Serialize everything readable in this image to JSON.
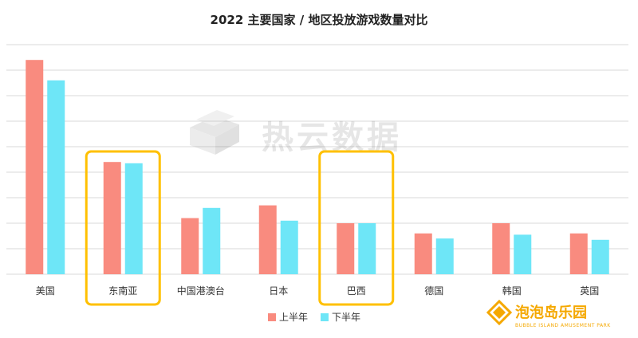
{
  "chart_data": {
    "type": "bar",
    "title": "2022 主要国家 / 地区投放游戏数量对比",
    "categories": [
      "美国",
      "东南亚",
      "中国港澳台",
      "日本",
      "巴西",
      "德国",
      "韩国",
      "英国"
    ],
    "series": [
      {
        "name": "上半年",
        "color": "#F98B7F",
        "values": [
          84,
          44,
          22,
          27,
          20,
          16,
          20,
          16
        ]
      },
      {
        "name": "下半年",
        "color": "#6EE6F7",
        "values": [
          76,
          43.5,
          26,
          21,
          20,
          14,
          15.5,
          13.5
        ]
      }
    ],
    "ylim": [
      0,
      90
    ],
    "y_gridline_step": 10,
    "y_tick_labels_shown": false,
    "grid": true,
    "legend_position": "bottom",
    "highlighted_categories": [
      "东南亚",
      "巴西"
    ],
    "highlight_color": "#FFC000"
  },
  "watermark": {
    "text": "热云数据"
  },
  "logo": {
    "cn": "泡泡岛乐园",
    "en": "BUBBLE ISLAND AMUSEMENT PARK"
  }
}
